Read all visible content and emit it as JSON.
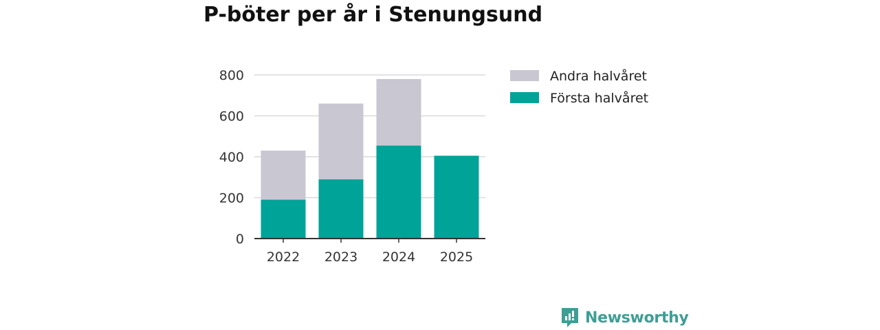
{
  "title": "P-böter per år i Stenungsund",
  "brand": {
    "name": "Newsworthy",
    "icon": "newsworthy-logo-icon",
    "color": "#3d9f94"
  },
  "chart_data": {
    "type": "bar",
    "stacked": true,
    "categories": [
      "2022",
      "2023",
      "2024",
      "2025"
    ],
    "series": [
      {
        "name": "Första halvåret",
        "color": "#00a398",
        "values": [
          190,
          290,
          455,
          405
        ]
      },
      {
        "name": "Andra halvåret",
        "color": "#c8c7d2",
        "values": [
          240,
          370,
          325,
          null
        ]
      }
    ],
    "ylim": [
      0,
      800
    ],
    "yticks": [
      0,
      200,
      400,
      600,
      800
    ],
    "grid": true,
    "legend": {
      "position": "right",
      "order": [
        "Andra halvåret",
        "Första halvåret"
      ]
    }
  }
}
